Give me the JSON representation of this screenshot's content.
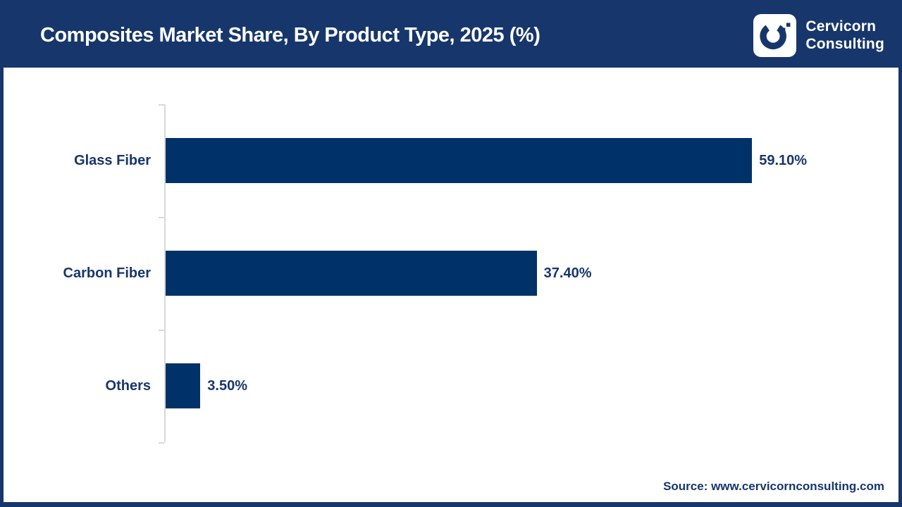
{
  "header": {
    "title": "Composites Market Share, By Product Type, 2025 (%)",
    "logo": {
      "icon": "cervicorn-c-mark",
      "brand_line1": "Cervicorn",
      "brand_line2": "Consulting"
    }
  },
  "footer": {
    "source": "Source: www.cervicornconsulting.com"
  },
  "colors": {
    "header_bg": "#17366B",
    "page_border": "#17366B",
    "bar_fill": "#003269",
    "label_text": "#17366B",
    "title_text": "#FFFFFF",
    "axis_line": "#D9D9D9"
  },
  "chart_data": {
    "type": "bar",
    "orientation": "horizontal",
    "title": "Composites Market Share, By Product Type, 2025 (%)",
    "categories": [
      "Glass Fiber",
      "Carbon Fiber",
      "Others"
    ],
    "values": [
      59.1,
      37.4,
      3.5
    ],
    "value_labels": [
      "59.10%",
      "37.40%",
      "3.50%"
    ],
    "xlabel": "",
    "ylabel": "",
    "xlim": [
      0,
      73
    ],
    "grid": false,
    "legend": false,
    "value_label_position": "outside-end"
  }
}
